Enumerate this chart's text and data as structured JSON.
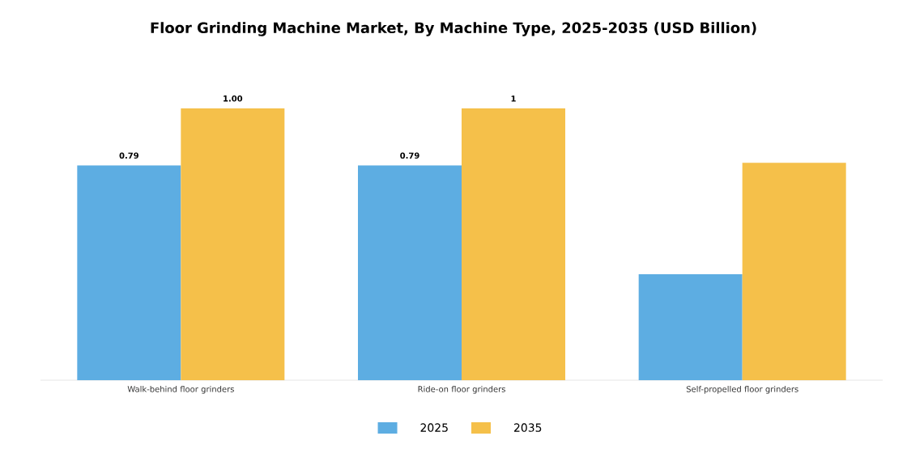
{
  "chart_data": {
    "type": "bar",
    "title": "Floor Grinding Machine Market, By Machine Type, 2025-2035 (USD Billion)",
    "categories": [
      "Walk-behind floor grinders",
      "Ride-on floor grinders",
      "Self-propelled floor grinders"
    ],
    "series": [
      {
        "name": "2025",
        "color": "#5dade2",
        "values": [
          0.79,
          0.79,
          0.39
        ],
        "value_labels": [
          "0.79",
          "0.79",
          null
        ]
      },
      {
        "name": "2035",
        "color": "#f5c04a",
        "values": [
          1.0,
          1,
          0.8
        ],
        "value_labels": [
          "1.00",
          "1",
          null
        ]
      }
    ],
    "legend": "bottom"
  }
}
